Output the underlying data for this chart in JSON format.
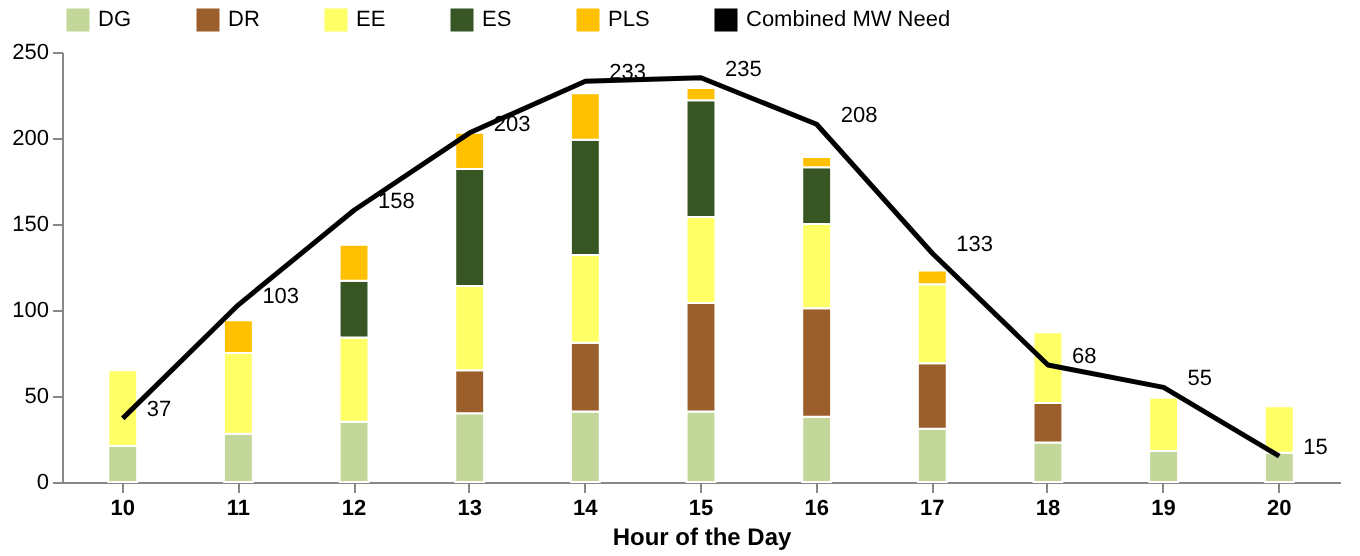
{
  "chart_data": {
    "type": "bar",
    "stacked": true,
    "xlabel": "Hour of the Day",
    "categories": [
      "10",
      "11",
      "12",
      "13",
      "14",
      "15",
      "16",
      "17",
      "18",
      "19",
      "20"
    ],
    "ylim": [
      0,
      250
    ],
    "yticks": [
      0,
      50,
      100,
      150,
      200,
      250
    ],
    "grid": false,
    "legend": "top",
    "series": [
      {
        "name": "DG",
        "color": "#c4d79b",
        "values": [
          21,
          28,
          35,
          40,
          41,
          41,
          38,
          31,
          23,
          18,
          17
        ]
      },
      {
        "name": "DR",
        "color": "#9b5f2c",
        "values": [
          null,
          null,
          null,
          25,
          40,
          63,
          63,
          38,
          23,
          null,
          null
        ]
      },
      {
        "name": "EE",
        "color": "#ffff66",
        "values": [
          44,
          47,
          49,
          49,
          51,
          50,
          49,
          46,
          41,
          31,
          27
        ]
      },
      {
        "name": "ES",
        "color": "#375623",
        "values": [
          null,
          null,
          33,
          68,
          67,
          68,
          33,
          null,
          null,
          null,
          null
        ]
      },
      {
        "name": "PLS",
        "color": "#ffc000",
        "values": [
          null,
          19,
          21,
          21,
          27,
          7,
          6,
          8,
          null,
          null,
          null
        ]
      },
      {
        "name": "Combined MW Need",
        "type": "line",
        "color": "#000000",
        "data_labels": true,
        "values": [
          37,
          103,
          158,
          203,
          233,
          235,
          208,
          133,
          68,
          55,
          15
        ]
      }
    ]
  }
}
